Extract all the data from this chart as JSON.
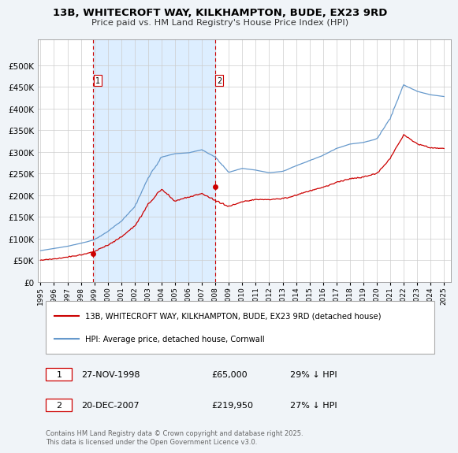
{
  "title_line1": "13B, WHITECROFT WAY, KILKHAMPTON, BUDE, EX23 9RD",
  "title_line2": "Price paid vs. HM Land Registry's House Price Index (HPI)",
  "legend_label_red": "13B, WHITECROFT WAY, KILKHAMPTON, BUDE, EX23 9RD (detached house)",
  "legend_label_blue": "HPI: Average price, detached house, Cornwall",
  "sale1_date": "27-NOV-1998",
  "sale1_price": "£65,000",
  "sale1_hpi": "29% ↓ HPI",
  "sale1_year": 1998.9,
  "sale1_value": 65000,
  "sale2_date": "20-DEC-2007",
  "sale2_price": "£219,950",
  "sale2_hpi": "27% ↓ HPI",
  "sale2_year": 2007.97,
  "sale2_value": 219950,
  "red_color": "#cc0000",
  "blue_color": "#6699cc",
  "shade_color": "#ddeeff",
  "dashed_color": "#cc0000",
  "background_color": "#f0f4f8",
  "plot_bg": "#ffffff",
  "grid_color": "#cccccc",
  "ylim": [
    0,
    560000
  ],
  "yticks": [
    0,
    50000,
    100000,
    150000,
    200000,
    250000,
    300000,
    350000,
    400000,
    450000,
    500000
  ],
  "footer": "Contains HM Land Registry data © Crown copyright and database right 2025.\nThis data is licensed under the Open Government Licence v3.0."
}
